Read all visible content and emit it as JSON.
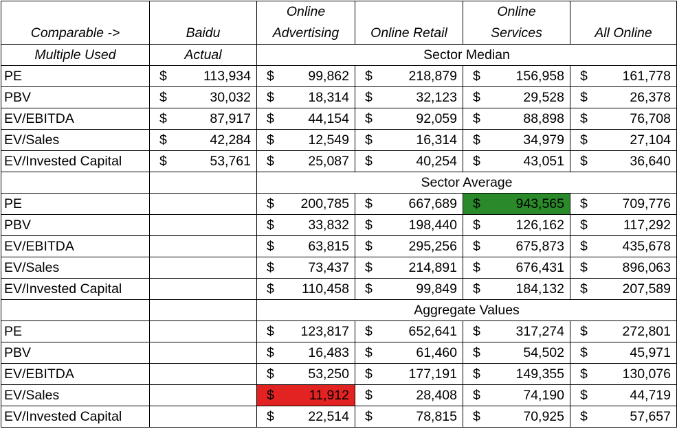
{
  "header": {
    "col1_line1": "Comparable ->",
    "col1_line2": "Multiple Used",
    "col2_line1": "Baidu",
    "col2_line2": "Actual",
    "col3_line1": "Online",
    "col3_line2": "Advertising",
    "col4": "Online Retail",
    "col5_line1": "Online",
    "col5_line2": "Services",
    "col6": "All Online"
  },
  "currency": "$",
  "colors": {
    "highlight_green": "#2a8a2a",
    "highlight_red": "#e32222"
  },
  "sections": [
    {
      "title": "Sector Median",
      "rows": [
        {
          "label": "PE",
          "values": [
            "113,934",
            "99,862",
            "218,879",
            "156,958",
            "161,778"
          ]
        },
        {
          "label": "PBV",
          "values": [
            "30,032",
            "18,314",
            "32,123",
            "29,528",
            "26,378"
          ]
        },
        {
          "label": "EV/EBITDA",
          "values": [
            "87,917",
            "44,154",
            "92,059",
            "88,898",
            "76,708"
          ]
        },
        {
          "label": "EV/Sales",
          "values": [
            "42,284",
            "12,549",
            "16,314",
            "34,979",
            "27,104"
          ]
        },
        {
          "label": "EV/Invested Capital",
          "values": [
            "53,761",
            "25,087",
            "40,254",
            "43,051",
            "36,640"
          ]
        }
      ]
    },
    {
      "title": "Sector Average",
      "rows": [
        {
          "label": "PE",
          "values": [
            "200,785",
            "667,689",
            "943,565",
            "709,776"
          ]
        },
        {
          "label": "PBV",
          "values": [
            "33,832",
            "198,440",
            "126,162",
            "117,292"
          ]
        },
        {
          "label": "EV/EBITDA",
          "values": [
            "63,815",
            "295,256",
            "675,873",
            "435,678"
          ]
        },
        {
          "label": "EV/Sales",
          "values": [
            "73,437",
            "214,891",
            "676,431",
            "896,063"
          ]
        },
        {
          "label": "EV/Invested Capital",
          "values": [
            "110,458",
            "99,849",
            "184,132",
            "207,589"
          ]
        }
      ]
    },
    {
      "title": "Aggregate Values",
      "rows": [
        {
          "label": "PE",
          "values": [
            "123,817",
            "652,641",
            "317,274",
            "272,801"
          ]
        },
        {
          "label": "PBV",
          "values": [
            "16,483",
            "61,460",
            "54,502",
            "45,971"
          ]
        },
        {
          "label": "EV/EBITDA",
          "values": [
            "53,250",
            "177,191",
            "149,355",
            "130,076"
          ]
        },
        {
          "label": "EV/Sales",
          "values": [
            "11,912",
            "28,408",
            "74,190",
            "44,719"
          ]
        },
        {
          "label": "EV/Invested Capital",
          "values": [
            "22,514",
            "78,815",
            "70,925",
            "57,657"
          ]
        }
      ]
    }
  ]
}
